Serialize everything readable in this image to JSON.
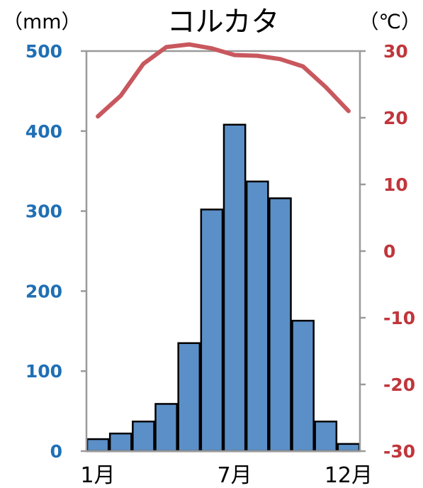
{
  "chart_data": {
    "type": "bar+line",
    "title": "コルカタ",
    "left_unit": "（mm）",
    "right_unit": "（℃）",
    "x_tick_labels": [
      "1月",
      "7月",
      "12月"
    ],
    "x_tick_indices": [
      0,
      6,
      11
    ],
    "months": 12,
    "left_axis": {
      "ylim": [
        0,
        500
      ],
      "ticks": [
        "0",
        "100",
        "200",
        "300",
        "400",
        "500"
      ],
      "color": "#1f6fb5"
    },
    "right_axis": {
      "ylim": [
        -30,
        30
      ],
      "ticks": [
        "-30",
        "-20",
        "-10",
        "0",
        "10",
        "20",
        "30"
      ],
      "color": "#c0363c"
    },
    "series": [
      {
        "kind": "bar",
        "values": [
          15,
          22,
          37,
          59,
          135,
          302,
          408,
          337,
          316,
          163,
          37,
          9
        ],
        "color": "#5b8fc7"
      },
      {
        "kind": "line",
        "values": [
          20.2,
          23.3,
          28.1,
          30.6,
          31.0,
          30.4,
          29.4,
          29.3,
          28.8,
          27.7,
          24.6,
          21.0
        ],
        "color": "#c8585e"
      }
    ]
  }
}
